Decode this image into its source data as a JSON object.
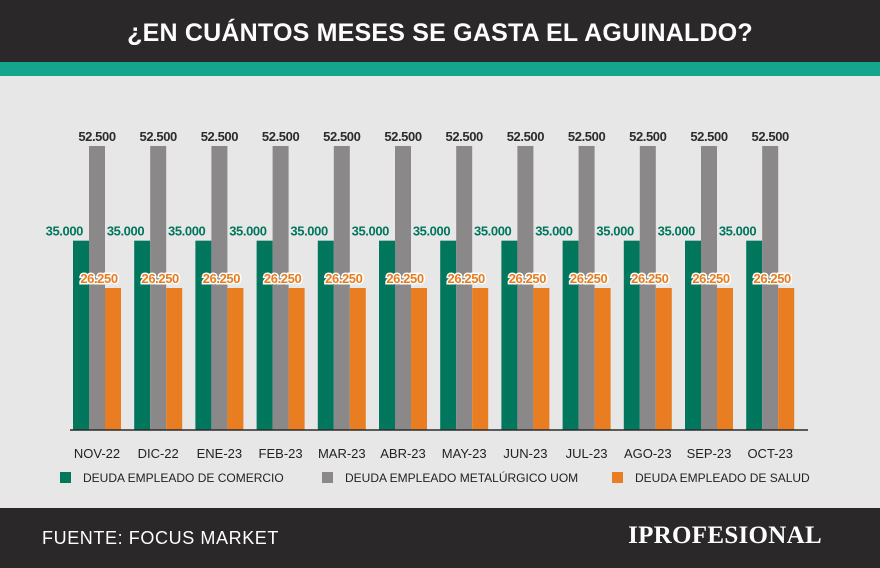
{
  "header": {
    "title": "¿EN CUÁNTOS MESES SE GASTA EL AGUINALDO?"
  },
  "footer": {
    "source": "FUENTE: FOCUS MARKET",
    "brand": "IPROFESIONAL"
  },
  "colors": {
    "comercio": "#00765d",
    "uom": "#8a8888",
    "salud": "#e97d22",
    "header_bg": "#2a2829",
    "accent": "#14a58c",
    "plot_bg": "#e7e7e7"
  },
  "chart_data": {
    "type": "bar",
    "title": "¿EN CUÁNTOS MESES SE GASTA EL AGUINALDO?",
    "categories": [
      "NOV-22",
      "DIC-22",
      "ENE-23",
      "FEB-23",
      "MAR-23",
      "ABR-23",
      "MAY-23",
      "JUN-23",
      "JUL-23",
      "AGO-23",
      "SEP-23",
      "OCT-23"
    ],
    "series": [
      {
        "name": "DEUDA EMPLEADO DE COMERCIO",
        "color": "#00765d",
        "values": [
          35000,
          35000,
          35000,
          35000,
          35000,
          35000,
          35000,
          35000,
          35000,
          35000,
          35000,
          35000
        ],
        "labels": [
          "35.000",
          "35.000",
          "35.000",
          "35.000",
          "35.000",
          "35.000",
          "35.000",
          "35.000",
          "35.000",
          "35.000",
          "35.000",
          "35.000"
        ]
      },
      {
        "name": "DEUDA EMPLEADO METALÚRGICO UOM",
        "color": "#8a8888",
        "values": [
          52500,
          52500,
          52500,
          52500,
          52500,
          52500,
          52500,
          52500,
          52500,
          52500,
          52500,
          52500
        ],
        "labels": [
          "52.500",
          "52.500",
          "52.500",
          "52.500",
          "52.500",
          "52.500",
          "52.500",
          "52.500",
          "52.500",
          "52.500",
          "52.500",
          "52.500"
        ]
      },
      {
        "name": "DEUDA EMPLEADO DE SALUD",
        "color": "#e97d22",
        "values": [
          26250,
          26250,
          26250,
          26250,
          26250,
          26250,
          26250,
          26250,
          26250,
          26250,
          26250,
          26250
        ],
        "labels": [
          "26.250",
          "26.250",
          "26.250",
          "26.250",
          "26.250",
          "26.250",
          "26.250",
          "26.250",
          "26.250",
          "26.250",
          "26.250",
          "26.250"
        ]
      }
    ],
    "xlabel": "",
    "ylabel": "",
    "ylim": [
      0,
      52500
    ],
    "grid": false,
    "legend": "bottom"
  }
}
